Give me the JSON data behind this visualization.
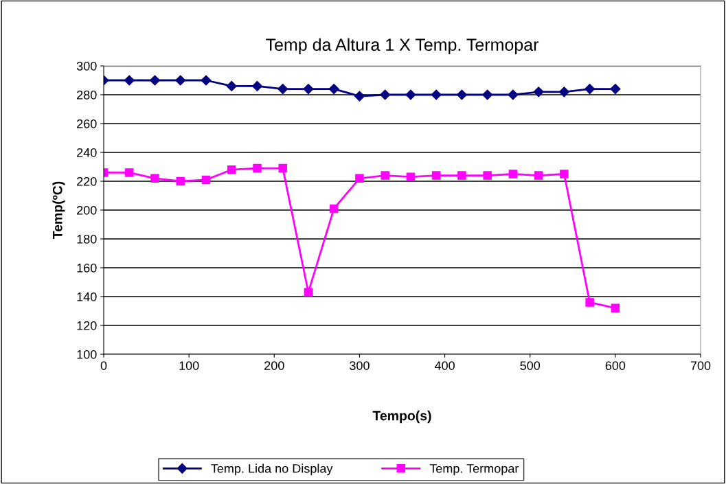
{
  "chart_data": {
    "type": "line",
    "title": "Temp da Altura 1 X Temp. Termopar",
    "xlabel": "Tempo(s)",
    "ylabel": "Temp(ºC)",
    "x": [
      0,
      30,
      60,
      90,
      120,
      150,
      180,
      210,
      240,
      270,
      300,
      330,
      360,
      390,
      420,
      450,
      480,
      510,
      540,
      570,
      600
    ],
    "series": [
      {
        "name": "Temp. Lida no Display",
        "color": "#000080",
        "marker": "diamond",
        "values": [
          290,
          290,
          290,
          290,
          290,
          286,
          286,
          284,
          284,
          284,
          279,
          280,
          280,
          280,
          280,
          280,
          280,
          282,
          282,
          284,
          284
        ]
      },
      {
        "name": "Temp. Termopar",
        "color": "#ff00ff",
        "marker": "square",
        "values": [
          226,
          226,
          222,
          220,
          221,
          228,
          229,
          229,
          143,
          201,
          222,
          224,
          223,
          224,
          224,
          224,
          225,
          224,
          225,
          136,
          132
        ]
      }
    ],
    "xlim": [
      0,
      700
    ],
    "xticks": [
      0,
      100,
      200,
      300,
      400,
      500,
      600,
      700
    ],
    "ylim": [
      100,
      300
    ],
    "yticks": [
      100,
      120,
      140,
      160,
      180,
      200,
      220,
      240,
      260,
      280,
      300
    ],
    "grid": "y",
    "legend": "bottom",
    "line_style": "solid"
  }
}
